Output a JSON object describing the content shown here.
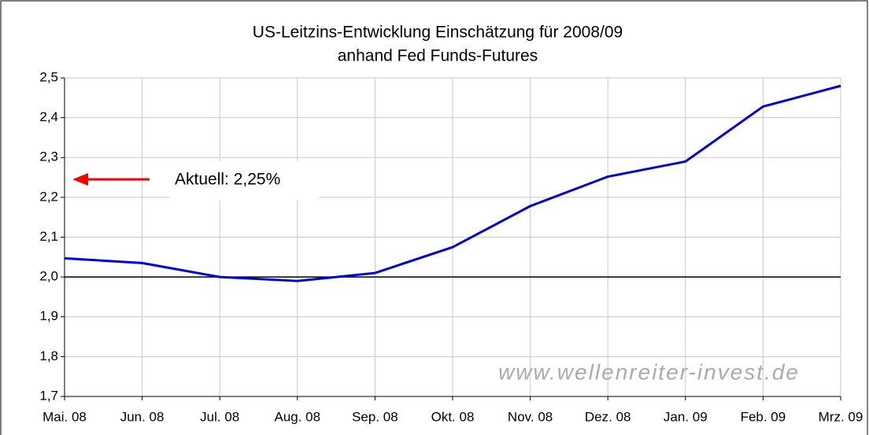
{
  "chart_data": {
    "type": "line",
    "title": "US-Leitzins-Entwicklung Einschätzung für 2008/09",
    "subtitle": "anhand Fed Funds-Futures",
    "categories": [
      "Mai. 08",
      "Jun. 08",
      "Jul. 08",
      "Aug. 08",
      "Sep. 08",
      "Okt. 08",
      "Nov. 08",
      "Dez. 08",
      "Jan. 09",
      "Feb. 09",
      "Mrz. 09"
    ],
    "series": [
      {
        "color": "#0000dd",
        "values": [
          2.047,
          2.035,
          2.0,
          1.99,
          2.01,
          2.075,
          2.178,
          2.252,
          2.29,
          2.428,
          2.48
        ]
      }
    ],
    "ylim": [
      1.7,
      2.5
    ],
    "yticks": [
      {
        "value": 1.7,
        "label": "1,7"
      },
      {
        "value": 1.8,
        "label": "1,8"
      },
      {
        "value": 1.9,
        "label": "1,9"
      },
      {
        "value": 2.0,
        "label": "2,0"
      },
      {
        "value": 2.1,
        "label": "2,1"
      },
      {
        "value": 2.2,
        "label": "2,2"
      },
      {
        "value": 2.3,
        "label": "2,3"
      },
      {
        "value": 2.4,
        "label": "2,4"
      },
      {
        "value": 2.5,
        "label": "2,5"
      }
    ],
    "reference_line": 2.0,
    "grid": true,
    "annotation": "Aktuell: 2,25%",
    "watermark": "www.wellenreiter-invest.de"
  }
}
